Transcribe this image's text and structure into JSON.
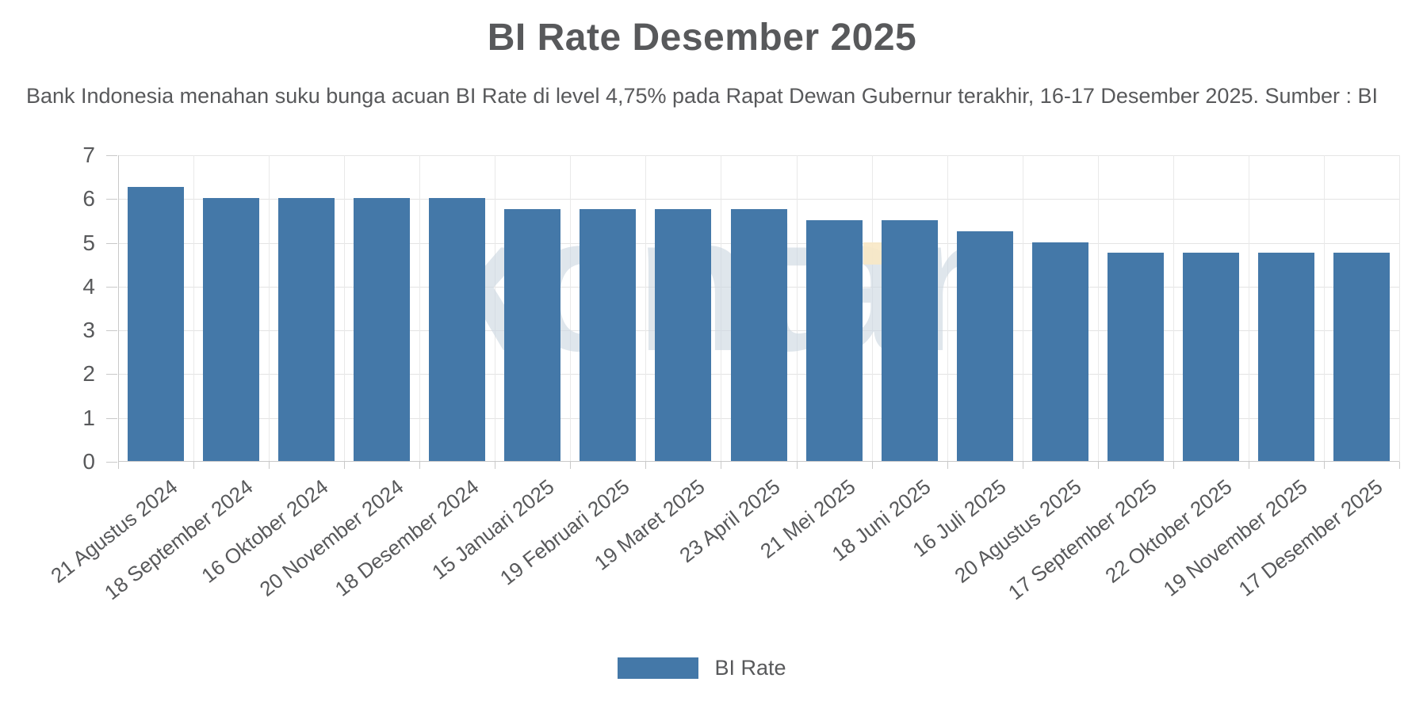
{
  "header": {
    "title": "BI Rate Desember 2025",
    "subtitle": "Bank Indonesia menahan suku bunga acuan BI Rate di level 4,75% pada Rapat Dewan Gubernur terakhir, 16-17 Desember 2025. Sumber : BI"
  },
  "chart_data": {
    "type": "bar",
    "title": "BI Rate Desember 2025",
    "subtitle": "Bank Indonesia menahan suku bunga acuan BI Rate di level 4,75% pada Rapat Dewan Gubernur terakhir, 16-17 Desember 2025. Sumber : BI",
    "categories": [
      "21 Agustus 2024",
      "18 September 2024",
      "16 Oktober 2024",
      "20 November 2024",
      "18 Desember 2024",
      "15 Januari 2025",
      "19 Februari 2025",
      "19 Maret 2025",
      "23 April 2025",
      "21 Mei 2025",
      "18 Juni 2025",
      "16 Juli 2025",
      "20 Agustus 2025",
      "17 September 2025",
      "22 Oktober 2025",
      "19 November 2025",
      "17 Desember 2025"
    ],
    "series": [
      {
        "name": "BI Rate",
        "values": [
          6.25,
          6,
          6,
          6,
          6,
          5.75,
          5.75,
          5.75,
          5.75,
          5.5,
          5.5,
          5.25,
          5,
          4.75,
          4.75,
          4.75,
          4.75
        ]
      }
    ],
    "xlabel": "",
    "ylabel": "",
    "ylim": [
      0,
      7
    ],
    "yticks": [
      0,
      1,
      2,
      3,
      4,
      5,
      6,
      7
    ],
    "grid": true,
    "legend_position": "bottom",
    "bar_color": "#4478a8",
    "text_color": "#58595b",
    "grid_color": "#e4e4e4",
    "axis_color": "#c9c9c9"
  },
  "legend": {
    "items": [
      {
        "label": "BI Rate",
        "color": "#4478a8"
      }
    ]
  },
  "watermark": {
    "text": "kontan",
    "accent_color": "#f8e8c5"
  }
}
